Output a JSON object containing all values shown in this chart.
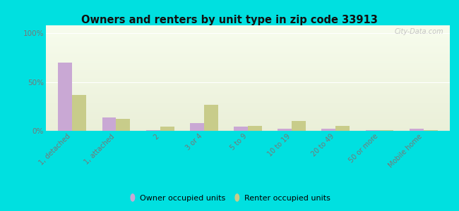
{
  "title": "Owners and renters by unit type in zip code 33913",
  "categories": [
    "1, detached",
    "1, attached",
    "2",
    "3 or 4",
    "5 to 9",
    "10 to 19",
    "20 to 49",
    "50 or more",
    "Mobile home"
  ],
  "owner_values": [
    70,
    14,
    1,
    8,
    4,
    2,
    2,
    0.5,
    2
  ],
  "renter_values": [
    37,
    12,
    4,
    27,
    5,
    10,
    5,
    0.5,
    1
  ],
  "owner_color": "#c9a8d4",
  "renter_color": "#c8cc8a",
  "outer_bg": "#00e0e0",
  "ylabel_ticks": [
    0,
    50,
    100
  ],
  "ytick_labels": [
    "0%",
    "50%",
    "100%"
  ],
  "ylim": [
    0,
    108
  ],
  "bar_width": 0.32,
  "legend_owner": "Owner occupied units",
  "legend_renter": "Renter occupied units",
  "watermark": "City-Data.com",
  "grid_color": "#ccddcc",
  "tick_color": "#777777",
  "title_color": "#111111"
}
